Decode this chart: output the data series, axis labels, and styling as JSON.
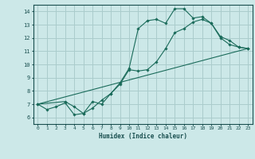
{
  "title": "",
  "xlabel": "Humidex (Indice chaleur)",
  "xlim": [
    -0.5,
    23.5
  ],
  "ylim": [
    5.5,
    14.5
  ],
  "xticks": [
    0,
    1,
    2,
    3,
    4,
    5,
    6,
    7,
    8,
    9,
    10,
    11,
    12,
    13,
    14,
    15,
    16,
    17,
    18,
    19,
    20,
    21,
    22,
    23
  ],
  "yticks": [
    6,
    7,
    8,
    9,
    10,
    11,
    12,
    13,
    14
  ],
  "background_color": "#cce8e8",
  "grid_color": "#aacccc",
  "line_color": "#1a6b5a",
  "line1_x": [
    0,
    1,
    2,
    3,
    4,
    5,
    6,
    7,
    8,
    9,
    10,
    11,
    12,
    13,
    14,
    15,
    16,
    17,
    18,
    19,
    20,
    21,
    22,
    23
  ],
  "line1_y": [
    7.0,
    6.6,
    6.8,
    7.1,
    6.2,
    6.3,
    6.7,
    7.3,
    7.8,
    8.6,
    9.7,
    12.7,
    13.3,
    13.4,
    13.1,
    14.2,
    14.2,
    13.5,
    13.6,
    13.1,
    12.1,
    11.8,
    11.3,
    11.2
  ],
  "line2_x": [
    0,
    3,
    4,
    5,
    6,
    7,
    8,
    9,
    10,
    11,
    12,
    13,
    14,
    15,
    16,
    17,
    18,
    19,
    20,
    21,
    22,
    23
  ],
  "line2_y": [
    7.0,
    7.2,
    6.8,
    6.3,
    7.2,
    7.0,
    7.8,
    8.5,
    9.6,
    9.5,
    9.6,
    10.2,
    11.2,
    12.4,
    12.7,
    13.2,
    13.4,
    13.1,
    12.0,
    11.5,
    11.3,
    11.2
  ],
  "line3_x": [
    0,
    23
  ],
  "line3_y": [
    7.0,
    11.2
  ]
}
